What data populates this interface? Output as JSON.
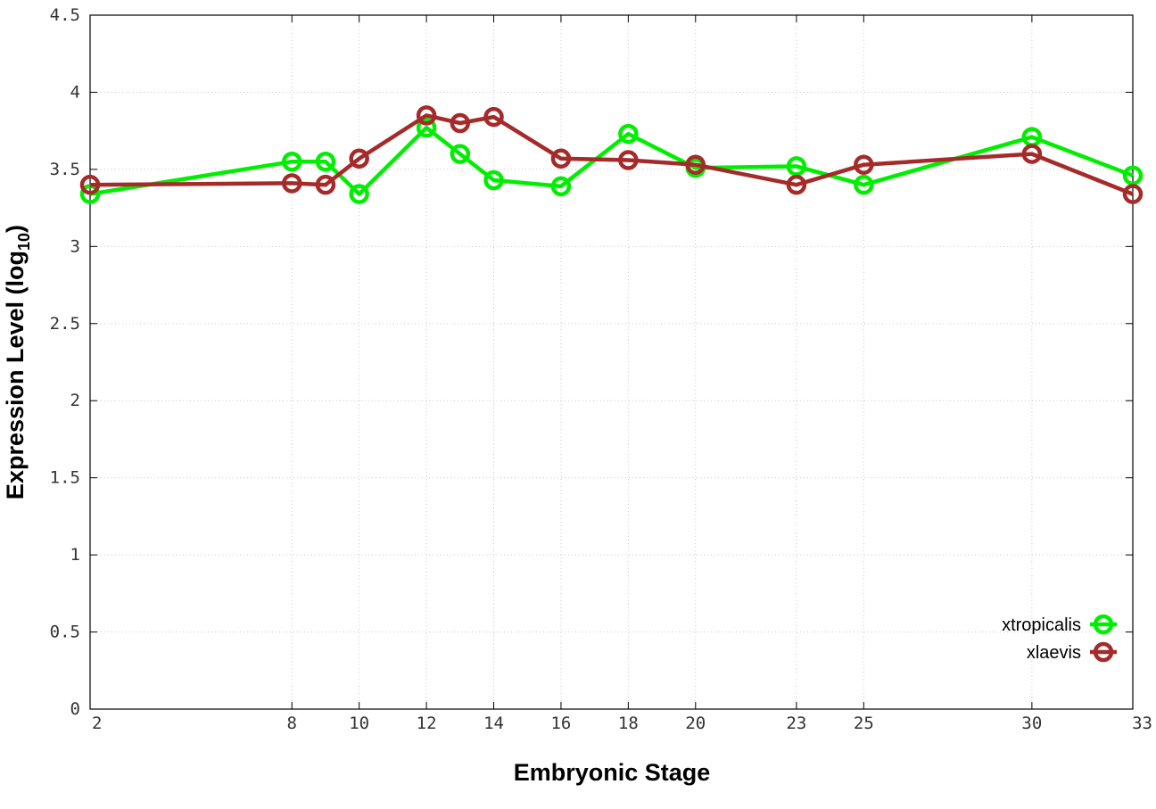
{
  "chart_data": {
    "type": "line",
    "xlabel": "Embryonic Stage",
    "ylabel": "Expression Level (log",
    "ylabel_subscript": "10",
    "ylabel_close": ")",
    "x_ticks": [
      "2",
      "8",
      "10",
      "12",
      "14",
      "16",
      "18",
      "20",
      "23",
      "25",
      "30",
      "33"
    ],
    "x_tick_positions": [
      2,
      8,
      10,
      12,
      14,
      16,
      18,
      20,
      23,
      25,
      30,
      33
    ],
    "y_ticks": [
      "0",
      "0.5",
      "1",
      "1.5",
      "2",
      "2.5",
      "3",
      "3.5",
      "4",
      "4.5"
    ],
    "xlim": [
      2,
      33
    ],
    "ylim": [
      0,
      4.5
    ],
    "grid": true,
    "legend_position": "bottom-right",
    "series": [
      {
        "name": "xtropicalis",
        "color": "#00ee00",
        "x": [
          2,
          8,
          9,
          10,
          12,
          13,
          14,
          16,
          18,
          20,
          23,
          25,
          30,
          33
        ],
        "values": [
          3.34,
          3.55,
          3.55,
          3.34,
          3.77,
          3.6,
          3.43,
          3.39,
          3.73,
          3.51,
          3.52,
          3.4,
          3.71,
          3.46
        ]
      },
      {
        "name": "xlaevis",
        "color": "#a52a2a",
        "x": [
          2,
          8,
          9,
          10,
          12,
          13,
          14,
          16,
          18,
          20,
          23,
          25,
          30,
          33
        ],
        "values": [
          3.4,
          3.41,
          3.4,
          3.57,
          3.85,
          3.8,
          3.84,
          3.57,
          3.56,
          3.53,
          3.4,
          3.53,
          3.6,
          3.34
        ]
      }
    ]
  }
}
